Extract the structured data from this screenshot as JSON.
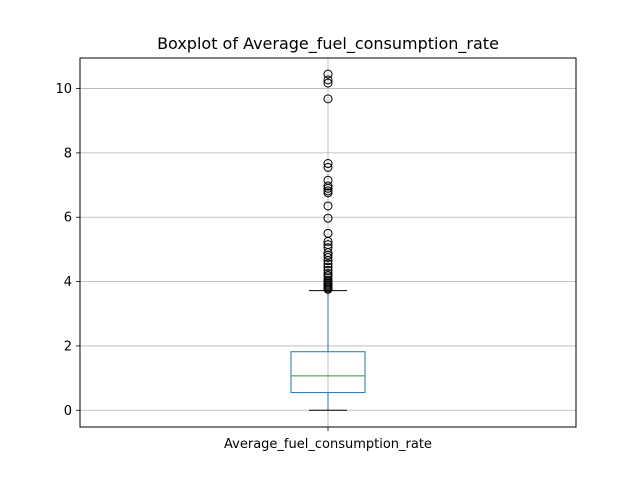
{
  "chart_data": {
    "type": "box",
    "title": "Boxplot of Average_fuel_consumption_rate",
    "categories": [
      "Average_fuel_consumption_rate"
    ],
    "ylim": [
      -0.52,
      10.95
    ],
    "y_ticks": [
      0,
      2,
      4,
      6,
      8,
      10
    ],
    "y_tick_labels": [
      "0",
      "2",
      "4",
      "6",
      "8",
      "10"
    ],
    "grid": true,
    "box": {
      "whisker_low": 0.0,
      "q1": 0.55,
      "median": 1.07,
      "q3": 1.82,
      "whisker_high": 3.72
    },
    "outliers": [
      3.76,
      3.8,
      3.84,
      3.88,
      3.92,
      3.96,
      4.0,
      4.05,
      4.12,
      4.18,
      4.25,
      4.35,
      4.45,
      4.55,
      4.65,
      4.75,
      4.82,
      4.9,
      5.05,
      5.15,
      5.25,
      5.5,
      5.97,
      6.35,
      6.76,
      6.82,
      6.9,
      6.97,
      7.15,
      7.55,
      7.67,
      9.68,
      10.17,
      10.27,
      10.45
    ],
    "colors": {
      "box": "#1f77b4",
      "median": "#2ca02c",
      "cap": "#000000",
      "flier": "#000000",
      "grid": "#b0b0b0"
    }
  }
}
